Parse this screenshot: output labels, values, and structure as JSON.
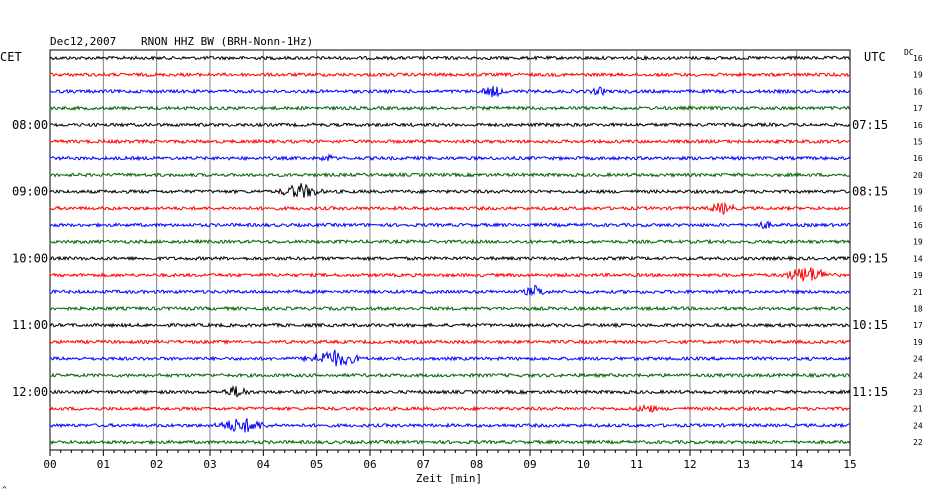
{
  "header": {
    "date": "Dec12,2007",
    "station": "RNON HHZ BW (BRH-Nonn-1Hz)"
  },
  "labels": {
    "left_timezone": "CET",
    "right_timezone": "UTC",
    "dc_header": "DC",
    "corner_mark": "^"
  },
  "chart_data": {
    "type": "line",
    "title": "Dec12,2007   RNON HHZ BW (BRH-Nonn-1Hz)",
    "xlabel": "Zeit [min]",
    "x_ticks": [
      "00",
      "01",
      "02",
      "03",
      "04",
      "05",
      "06",
      "07",
      "08",
      "09",
      "10",
      "11",
      "12",
      "13",
      "14",
      "15"
    ],
    "xlim": [
      0,
      15
    ],
    "grid": true,
    "trace_colors": [
      "#000000",
      "#ff0000",
      "#0000ff",
      "#006400"
    ],
    "left_hour_labels": [
      {
        "row": 4,
        "text": "08:00"
      },
      {
        "row": 8,
        "text": "09:00"
      },
      {
        "row": 12,
        "text": "10:00"
      },
      {
        "row": 16,
        "text": "11:00"
      },
      {
        "row": 20,
        "text": "12:00"
      }
    ],
    "right_hour_labels": [
      {
        "row": 4,
        "text": "07:15"
      },
      {
        "row": 8,
        "text": "08:15"
      },
      {
        "row": 12,
        "text": "09:15"
      },
      {
        "row": 16,
        "text": "10:15"
      },
      {
        "row": 20,
        "text": "11:15"
      }
    ],
    "dc_values": [
      16,
      19,
      16,
      17,
      16,
      15,
      16,
      20,
      19,
      16,
      16,
      19,
      14,
      19,
      21,
      18,
      17,
      19,
      24,
      24,
      23,
      21,
      24,
      22
    ],
    "events": [
      {
        "row": 2,
        "minute": 8.3,
        "amp": 5,
        "dur": 0.25
      },
      {
        "row": 2,
        "minute": 10.3,
        "amp": 3,
        "dur": 0.2
      },
      {
        "row": 6,
        "minute": 5.2,
        "amp": 3,
        "dur": 0.15
      },
      {
        "row": 8,
        "minute": 4.7,
        "amp": 7,
        "dur": 0.45
      },
      {
        "row": 9,
        "minute": 12.6,
        "amp": 5,
        "dur": 0.3
      },
      {
        "row": 10,
        "minute": 13.4,
        "amp": 3,
        "dur": 0.2
      },
      {
        "row": 13,
        "minute": 14.2,
        "amp": 8,
        "dur": 0.5
      },
      {
        "row": 14,
        "minute": 9.1,
        "amp": 5,
        "dur": 0.25
      },
      {
        "row": 18,
        "minute": 5.3,
        "amp": 8,
        "dur": 0.6
      },
      {
        "row": 20,
        "minute": 3.5,
        "amp": 5,
        "dur": 0.3
      },
      {
        "row": 21,
        "minute": 11.2,
        "amp": 4,
        "dur": 0.2
      },
      {
        "row": 22,
        "minute": 3.6,
        "amp": 7,
        "dur": 0.55
      }
    ]
  }
}
